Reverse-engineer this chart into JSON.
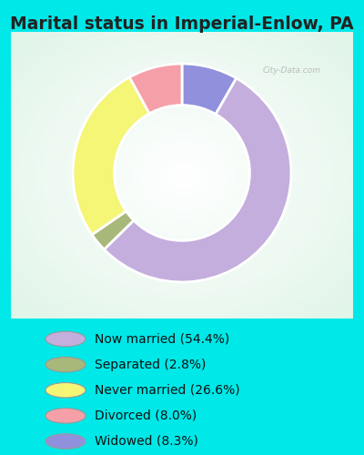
{
  "title": "Marital status in Imperial-Enlow, PA",
  "slices": [
    {
      "label": "Now married (54.4%)",
      "value": 54.4,
      "color": "#c4aedd"
    },
    {
      "label": "Separated (2.8%)",
      "value": 2.8,
      "color": "#a8b87a"
    },
    {
      "label": "Never married (26.6%)",
      "value": 26.6,
      "color": "#f5f576"
    },
    {
      "label": "Divorced (8.0%)",
      "value": 8.0,
      "color": "#f5a0a8"
    },
    {
      "label": "Widowed (8.3%)",
      "value": 8.3,
      "color": "#9090dd"
    }
  ],
  "legend_marker_colors": [
    "#c4aedd",
    "#a8b87a",
    "#f5f576",
    "#f5a0a8",
    "#9090dd"
  ],
  "bg_color": "#00e8e8",
  "panel_bg": "#e8f5ee",
  "title_fontsize": 13.5,
  "watermark": "City-Data.com",
  "start_angle": 90,
  "donut_width": 0.38
}
